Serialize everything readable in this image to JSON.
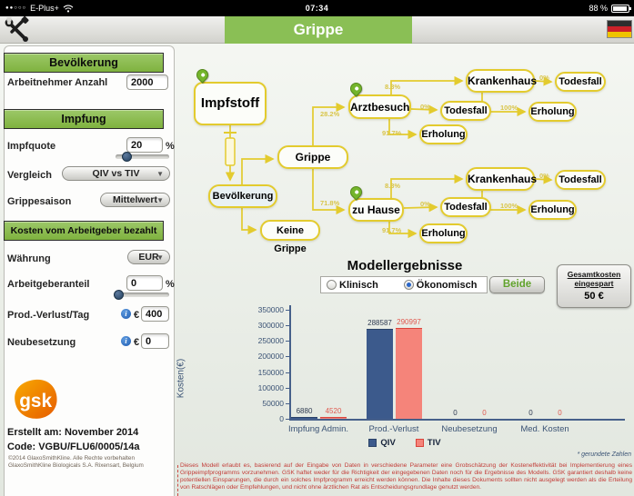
{
  "status_bar": {
    "signal_dots": "●●○○○",
    "carrier": "E-Plus+",
    "time": "07:34",
    "battery": "88 %"
  },
  "header": {
    "title": "Grippe"
  },
  "colors": {
    "brand_green": "#8abf55",
    "diagram_yellow": "#e3cb2e",
    "pin_green": "#74b52c",
    "qiv": "#3c5a8c",
    "tiv": "#f4756b",
    "disclaimer_red": "#c23b36"
  },
  "sidebar": {
    "bevoelkerung_header": "Bevölkerung",
    "arbeitnehmer_label": "Arbeitnehmer Anzahl",
    "arbeitnehmer_value": "2000",
    "impfung_header": "Impfung",
    "impfquote_label": "Impfquote",
    "impfquote_value": "20",
    "impfquote_unit": "%",
    "vergleich_label": "Vergleich",
    "vergleich_value": "QIV vs TIV",
    "grippesaison_label": "Grippesaison",
    "grippesaison_value": "Mittelwert",
    "kosten_header": "Kosten vom Arbeitgeber bezahlt",
    "waehrung_label": "Währung",
    "waehrung_value": "EUR",
    "arbeitgeberanteil_label": "Arbeitgeberanteil",
    "arbeitgeberanteil_value": "0",
    "arbeitgeberanteil_unit": "%",
    "prod_verlust_label": "Prod.-Verlust/Tag",
    "prod_verlust_currency": "€",
    "prod_verlust_value": "400",
    "neubesetzung_label": "Neubesetzung",
    "neubesetzung_currency": "€",
    "neubesetzung_value": "0",
    "info_icon_glyph": "i"
  },
  "footer": {
    "logo_text": "gsk",
    "created": "Erstellt am: November 2014",
    "code": "Code: VGBU/FLU6/0005/14a",
    "copyright1": "©2014 GlaxoSmithKline. Alle Rechte vorbehalten",
    "copyright2": "GlaxoSmithKline Biologicals S.A.   Rixensart, Belgium"
  },
  "diagram": {
    "nodes": {
      "impfstoff": "Impfstoff",
      "grippe": "Grippe",
      "bevoelkerung": "Bevölkerung",
      "keine_grippe": "Keine Grippe",
      "arztbesuch": "Arztbesuch",
      "zu_hause": "zu Hause",
      "krankenhaus1": "Krankenhaus",
      "todesfall1a": "Todesfall",
      "erholung1a": "Erholung",
      "todesfall1b": "Todesfall",
      "erholung1b": "Erholung",
      "krankenhaus2": "Krankenhaus",
      "todesfall2a": "Todesfall",
      "erholung2a": "Erholung",
      "todesfall2b": "Todesfall",
      "erholung2b": "Erholung"
    },
    "edges": {
      "grippe_arztbesuch": "28.2%",
      "grippe_zuhause": "71.8%",
      "arztbesuch_krankenhaus": "8.3%",
      "arztbesuch_todesfall": "0%",
      "arztbesuch_erholung": "91.7%",
      "krankenhaus1_todesfall": "0%",
      "krankenhaus1_erholung": "100%",
      "zuhause_krankenhaus": "8.3%",
      "zuhause_todesfall": "0%",
      "zuhause_erholung": "91.7%",
      "krankenhaus2_todesfall": "0%",
      "krankenhaus2_erholung": "100%"
    }
  },
  "results": {
    "title": "Modellergebnisse",
    "radio_klinisch": "Klinisch",
    "radio_oekonomisch": "Ökonomisch",
    "selected": "Ökonomisch",
    "beide_button": "Beide",
    "savings_line1": "Gesamtkosten",
    "savings_line2": "eingespart",
    "savings_value": "50 €"
  },
  "chart_data": {
    "type": "bar",
    "categories": [
      "Impfung Admin.",
      "Prod.-Verlust",
      "Neubesetzung",
      "Med. Kosten"
    ],
    "series": [
      {
        "name": "QIV",
        "values": [
          6880,
          288587,
          0,
          0
        ],
        "color": "#3c5a8c",
        "border": "#2b4368",
        "label_color": "#2e3a50"
      },
      {
        "name": "TIV",
        "values": [
          4520,
          290997,
          0,
          0
        ],
        "color": "#f5847a",
        "border": "#d9453c",
        "label_color": "#e05a50"
      }
    ],
    "ylabel": "Kosten(€)",
    "ylim": [
      0,
      350000
    ],
    "yticks": [
      0,
      50000,
      100000,
      150000,
      200000,
      250000,
      300000,
      350000
    ],
    "grid": false,
    "legend_position": "bottom",
    "footnote": "* gerundete Zahlen"
  },
  "disclaimer": "Dieses Modell erlaubt es, basierend auf der Eingabe von Daten in verschiedene Parameter eine Grobschätzung der Kosteneffektivität bei Implementierung eines Grippeimpfprogramms vorzunehmen. GSK haftet weder für die Richtigkeit der eingegebenen Daten noch für die Ergebnisse des Modells. GSK garantiert deshalb keine potentiellen Einsparungen, die durch ein solches Impfprogramm erreicht werden können. Die Inhalte dieses Dokuments sollten nicht ausgelegt werden als die Erteilung von Ratschlägen oder Empfehlungen, und nicht ohne ärztlichen Rat als Entscheidungsgrundlage genutzt werden."
}
